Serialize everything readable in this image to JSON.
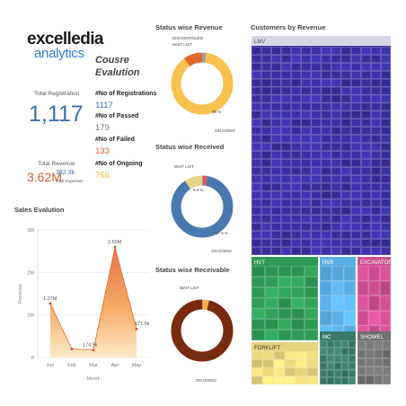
{
  "logo": {
    "line1": "excelledia",
    "line2": "analytics"
  },
  "kpis": {
    "total_registration_label": "Total Registration",
    "total_registration_value": "1,117",
    "total_revenue_label": "Total Revenue",
    "total_revenue_value": "3.62M",
    "total_expenses_value": "382.3k",
    "total_expenses_label": "Total Expenses"
  },
  "course_evaluation": {
    "title_line1": "Cousre",
    "title_line2": "Evalution",
    "items": [
      {
        "label": "#No of Registrations",
        "value": "1117",
        "color": "#3f6fa8"
      },
      {
        "label": "#No of Passed",
        "value": "179",
        "color": "#777777"
      },
      {
        "label": "#No of Failed",
        "value": "133",
        "color": "#e05a33"
      },
      {
        "label": "#No of Ongoing",
        "value": "756",
        "color": "#f2b632"
      }
    ]
  },
  "sales_evaluation": {
    "title": "Sales Evalution",
    "y_ticks": [
      "3M",
      "2M",
      "1M",
      "0"
    ],
    "x_axis_title": "Month",
    "y_axis_title": "Revenue",
    "point_labels": [
      "1.27M",
      "",
      "174.5k",
      "2.60M",
      "671.5k"
    ]
  },
  "status_revenue": {
    "title": "Status wise Revenue",
    "labels": {
      "discontinued": "DISCONTINUED",
      "wait_list": "WAIT LIST",
      "pct": "88 %",
      "on_going": "ON GOING"
    }
  },
  "status_received": {
    "title": "Status wise Received",
    "labels": {
      "wait_list": "WAIT LIST",
      "pct_small": "9.4 %",
      "pct": "87.9 %",
      "on_going": "ON GOING"
    }
  },
  "status_receivable": {
    "title": "Status wise Receivable",
    "labels": {
      "wait_list": "WAIT LIST",
      "pct": "96.4 %",
      "on_going": "ON GOING"
    }
  },
  "customers": {
    "title": "Customers by Revenue",
    "groups": [
      {
        "name": "LMV",
        "color": "#3b2fa0"
      },
      {
        "name": "HVT",
        "color": "#2e9a55"
      },
      {
        "name": "HVB",
        "color": "#5aaee6"
      },
      {
        "name": "EXCAVATOR",
        "color": "#cc4e8f"
      },
      {
        "name": "FORKLIFT",
        "color": "#e8d47a"
      },
      {
        "name": "MC",
        "color": "#3a7a6a"
      },
      {
        "name": "SHOWEL",
        "color": "#6f6f6f"
      }
    ]
  },
  "chart_data": [
    {
      "type": "area",
      "title": "Sales Evalution",
      "xlabel": "Month",
      "ylabel": "Revenue",
      "categories": [
        "Jan",
        "Feb",
        "Mar",
        "Apr",
        "May"
      ],
      "values": [
        1270000,
        200000,
        174500,
        2600000,
        671500
      ],
      "ylim": [
        0,
        3000000
      ],
      "grid": true
    },
    {
      "type": "pie",
      "title": "Status wise Revenue",
      "categories": [
        "ON GOING",
        "DISCONTINUED",
        "WAIT LIST"
      ],
      "values": [
        88,
        10,
        2
      ],
      "colors": [
        "#f7c24e",
        "#e0672c",
        "#9b9b9b"
      ]
    },
    {
      "type": "pie",
      "title": "Status wise Received",
      "categories": [
        "ON GOING",
        "WAIT LIST",
        "DISCONTINUED"
      ],
      "values": [
        87.9,
        9.4,
        2.7
      ],
      "colors": [
        "#4a78b0",
        "#e8d48a",
        "#d35a6a"
      ]
    },
    {
      "type": "pie",
      "title": "Status wise Receivable",
      "categories": [
        "ON GOING",
        "WAIT LIST"
      ],
      "values": [
        96.4,
        3.6
      ],
      "colors": [
        "#7a2a0e",
        "#f0b04a"
      ]
    },
    {
      "type": "heatmap",
      "title": "Customers by Revenue",
      "categories": [
        "LMV",
        "HVT",
        "HVB",
        "EXCAVATOR",
        "FORKLIFT",
        "MC",
        "SHOWEL"
      ]
    }
  ]
}
